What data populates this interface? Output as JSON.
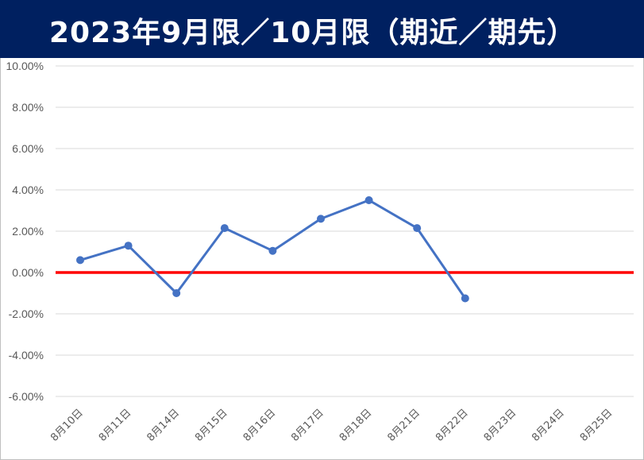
{
  "title": "2023年9月限／10月限（期近／期先）",
  "colors": {
    "title_background": "#002060",
    "title_text": "#ffffff",
    "series_line": "#4472c4",
    "zero_line": "#ff0000",
    "grid": "#d9d9d9"
  },
  "chart_data": {
    "type": "line",
    "title": "2023年9月限／10月限（期近／期先）",
    "xlabel": "",
    "ylabel": "",
    "categories": [
      "8月10日",
      "8月11日",
      "8月14日",
      "8月15日",
      "8月16日",
      "8月17日",
      "8月18日",
      "8月21日",
      "8月22日",
      "8月23日",
      "8月24日",
      "8月25日"
    ],
    "series": [
      {
        "values": [
          0.6,
          1.3,
          -1.0,
          2.15,
          1.05,
          2.6,
          3.5,
          2.15,
          -1.25,
          null,
          null,
          null
        ]
      }
    ],
    "reference_line": 0.0,
    "ylim": [
      -6.0,
      10.0
    ],
    "yticks": [
      10.0,
      8.0,
      6.0,
      4.0,
      2.0,
      0.0,
      -2.0,
      -4.0,
      -6.0
    ],
    "ytick_labels": [
      "10.00%",
      "8.00%",
      "6.00%",
      "4.00%",
      "2.00%",
      "0.00%",
      "-2.00%",
      "-4.00%",
      "-6.00%"
    ],
    "grid": true,
    "legend": "none"
  }
}
